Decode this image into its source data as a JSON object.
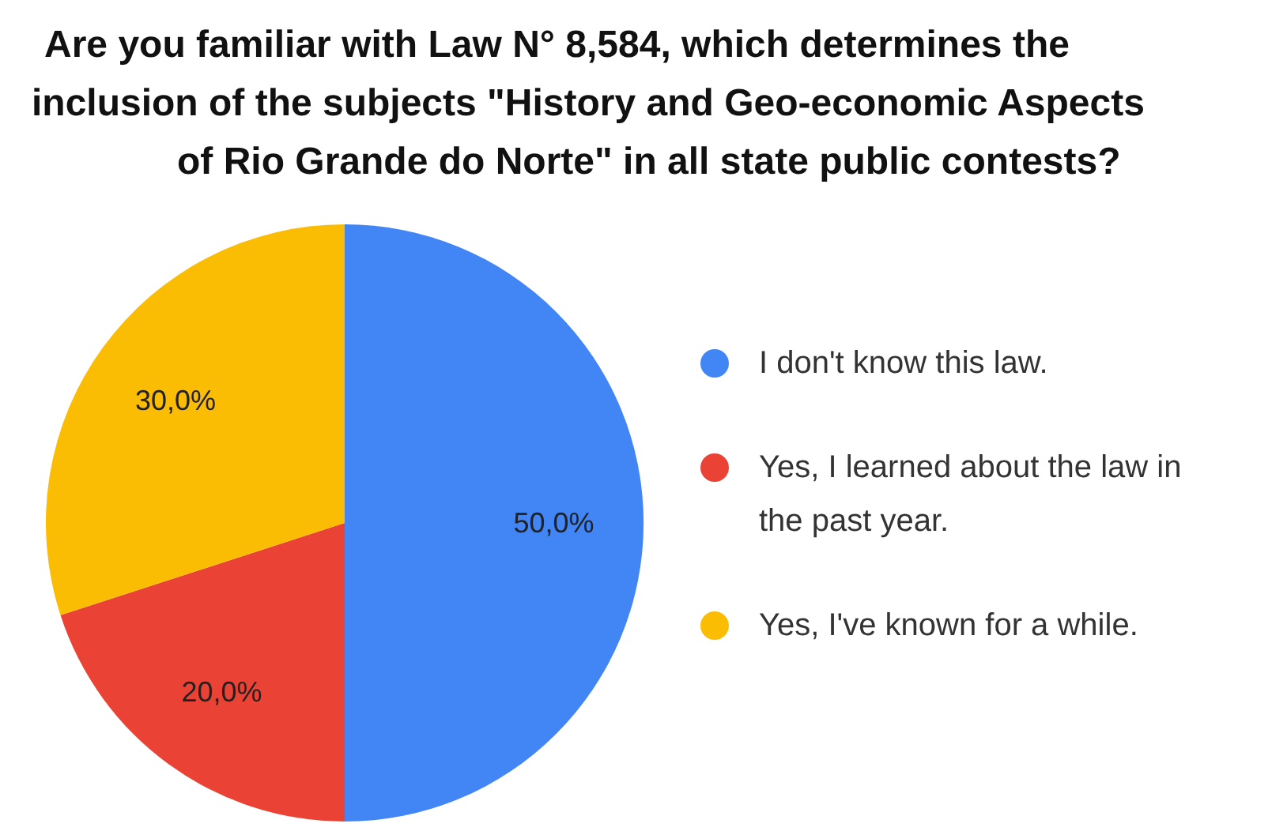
{
  "chart_data": {
    "type": "pie",
    "title": "Are you familiar with Law N° 8,584, which determines the\ninclusion of the subjects \"History and Geo-economic Aspects\nof Rio Grande do Norte\" in all state public contests?",
    "categories": [
      "I don't know this law.",
      "Yes, I learned about the law in\nthe past year.",
      "Yes, I've known for a while."
    ],
    "values": [
      50,
      20,
      30
    ],
    "colors": [
      "#4285f4",
      "#ea4335",
      "#fbbc04"
    ],
    "value_labels": [
      "50,0%",
      "20,0%",
      "30,0%"
    ],
    "legend": "right"
  }
}
